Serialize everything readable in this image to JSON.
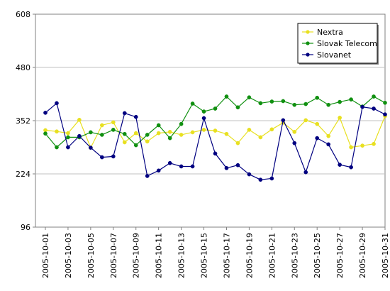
{
  "chart_data": {
    "type": "line",
    "title": "",
    "xlabel": "",
    "ylabel": "",
    "ylim": [
      96,
      608
    ],
    "yticks": [
      96,
      224,
      352,
      480,
      608
    ],
    "grid": true,
    "legend_position": "top-right",
    "x": [
      "2005-10-01",
      "2005-10-02",
      "2005-10-03",
      "2005-10-04",
      "2005-10-05",
      "2005-10-06",
      "2005-10-07",
      "2005-10-08",
      "2005-10-09",
      "2005-10-10",
      "2005-10-11",
      "2005-10-12",
      "2005-10-13",
      "2005-10-14",
      "2005-10-15",
      "2005-10-16",
      "2005-10-17",
      "2005-10-18",
      "2005-10-19",
      "2005-10-20",
      "2005-10-21",
      "2005-10-22",
      "2005-10-23",
      "2005-10-24",
      "2005-10-25",
      "2005-10-26",
      "2005-10-27",
      "2005-10-28",
      "2005-10-29",
      "2005-10-30",
      "2005-10-31"
    ],
    "x_tick_labels": [
      "2005-10-01",
      "2005-10-03",
      "2005-10-05",
      "2005-10-07",
      "2005-10-09",
      "2005-10-11",
      "2005-10-13",
      "2005-10-15",
      "2005-10-17",
      "2005-10-19",
      "2005-10-21",
      "2005-10-23",
      "2005-10-25",
      "2005-10-27",
      "2005-10-29",
      "2005-10-31"
    ],
    "series": [
      {
        "name": "Nextra",
        "color": "#e8e020",
        "values": [
          329,
          326,
          322,
          354,
          287,
          341,
          348,
          300,
          322,
          302,
          322,
          325,
          318,
          324,
          330,
          328,
          320,
          298,
          330,
          312,
          331,
          347,
          325,
          353,
          344,
          315,
          359,
          288,
          292,
          296,
          363
        ]
      },
      {
        "name": "Slovak Telecom",
        "color": "#109010",
        "values": [
          321,
          288,
          312,
          312,
          324,
          318,
          330,
          320,
          293,
          318,
          341,
          310,
          344,
          393,
          374,
          381,
          410,
          384,
          408,
          394,
          398,
          399,
          390,
          392,
          407,
          390,
          397,
          403,
          386,
          410,
          395
        ]
      },
      {
        "name": "Slovanet",
        "color": "#000080",
        "values": [
          371,
          394,
          288,
          315,
          287,
          264,
          266,
          370,
          361,
          219,
          232,
          250,
          242,
          242,
          358,
          273,
          238,
          245,
          223,
          210,
          213,
          353,
          298,
          228,
          310,
          295,
          246,
          240,
          385,
          381,
          367
        ]
      }
    ]
  }
}
